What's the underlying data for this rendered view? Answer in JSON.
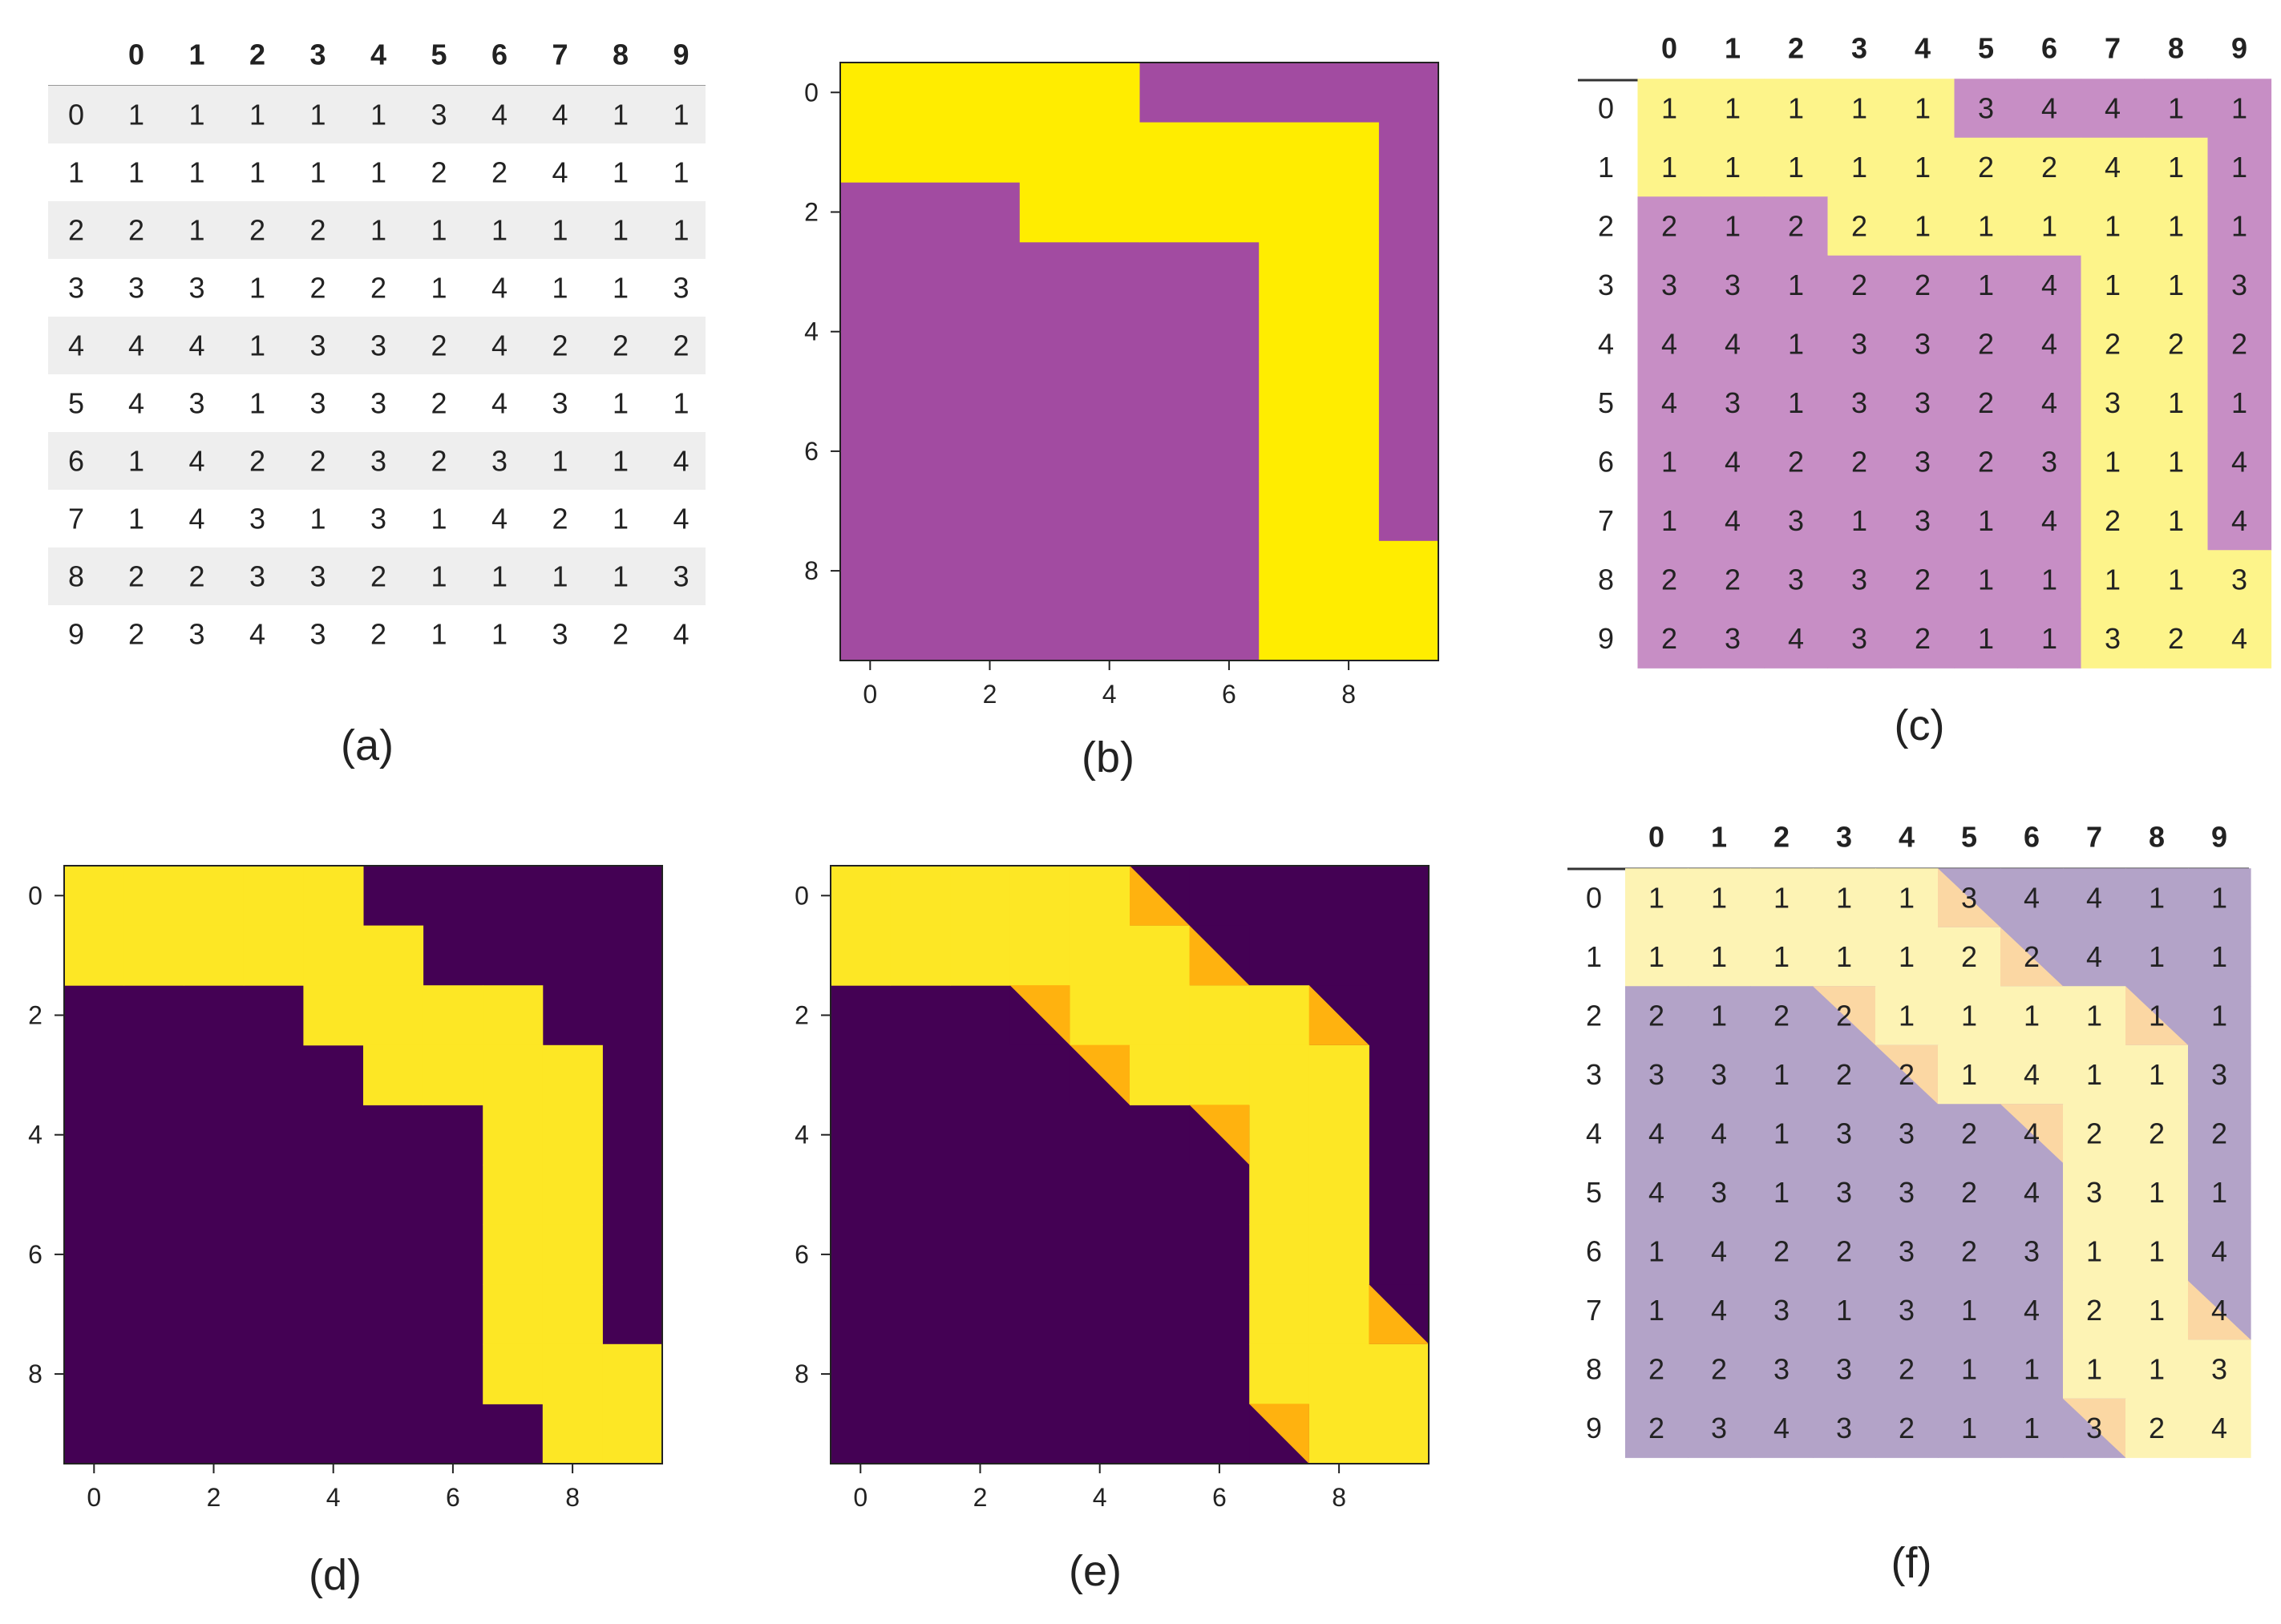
{
  "figure": {
    "captions": [
      "(a)",
      "(b)",
      "(c)",
      "(d)",
      "(e)",
      "(f)"
    ]
  },
  "colors": {
    "magenta": "#a24ba1",
    "yellow_bright": "#ffed00",
    "dark_purple": "#440154",
    "yellow_viridis": "#fde725",
    "orange": "#ffb20f",
    "overlay_purple": "#c78ec5",
    "overlay_yellow": "#fdf48a",
    "f_purple": "#b3a3c8",
    "f_yellow": "#fdf3b4",
    "f_orange": "#fbd7a3",
    "stripe": "#eeeeee",
    "text": "#222222"
  },
  "chart_data": [
    {
      "panel": "a",
      "type": "table",
      "columns": [
        "0",
        "1",
        "2",
        "3",
        "4",
        "5",
        "6",
        "7",
        "8",
        "9"
      ],
      "row_labels": [
        "0",
        "1",
        "2",
        "3",
        "4",
        "5",
        "6",
        "7",
        "8",
        "9"
      ],
      "rows": [
        [
          1,
          1,
          1,
          1,
          1,
          3,
          4,
          4,
          1,
          1
        ],
        [
          1,
          1,
          1,
          1,
          1,
          2,
          2,
          4,
          1,
          1
        ],
        [
          2,
          1,
          2,
          2,
          1,
          1,
          1,
          1,
          1,
          1
        ],
        [
          3,
          3,
          1,
          2,
          2,
          1,
          4,
          1,
          1,
          3
        ],
        [
          4,
          4,
          1,
          3,
          3,
          2,
          4,
          2,
          2,
          2
        ],
        [
          4,
          3,
          1,
          3,
          3,
          2,
          4,
          3,
          1,
          1
        ],
        [
          1,
          4,
          2,
          2,
          3,
          2,
          3,
          1,
          1,
          4
        ],
        [
          1,
          4,
          3,
          1,
          3,
          1,
          4,
          2,
          1,
          4
        ],
        [
          2,
          2,
          3,
          3,
          2,
          1,
          1,
          1,
          1,
          3
        ],
        [
          2,
          3,
          4,
          3,
          2,
          1,
          1,
          3,
          2,
          4
        ]
      ]
    },
    {
      "panel": "b",
      "type": "heatmap",
      "description_values": "binary mask, 1 = path (yellow), 0 = background (magenta)",
      "x_ticks": [
        "0",
        "2",
        "4",
        "6",
        "8"
      ],
      "y_ticks": [
        "0",
        "2",
        "4",
        "6",
        "8"
      ],
      "mask": [
        [
          1,
          1,
          1,
          1,
          1,
          0,
          0,
          0,
          0,
          0
        ],
        [
          1,
          1,
          1,
          1,
          1,
          1,
          1,
          1,
          1,
          0
        ],
        [
          0,
          0,
          0,
          1,
          1,
          1,
          1,
          1,
          1,
          0
        ],
        [
          0,
          0,
          0,
          0,
          0,
          0,
          0,
          1,
          1,
          0
        ],
        [
          0,
          0,
          0,
          0,
          0,
          0,
          0,
          1,
          1,
          0
        ],
        [
          0,
          0,
          0,
          0,
          0,
          0,
          0,
          1,
          1,
          0
        ],
        [
          0,
          0,
          0,
          0,
          0,
          0,
          0,
          1,
          1,
          0
        ],
        [
          0,
          0,
          0,
          0,
          0,
          0,
          0,
          1,
          1,
          0
        ],
        [
          0,
          0,
          0,
          0,
          0,
          0,
          0,
          1,
          1,
          1
        ],
        [
          0,
          0,
          0,
          0,
          0,
          0,
          0,
          1,
          1,
          1
        ]
      ]
    },
    {
      "panel": "c",
      "type": "table",
      "description": "grid of panel (a) overlaid with the mask of panel (b)",
      "columns": [
        "0",
        "1",
        "2",
        "3",
        "4",
        "5",
        "6",
        "7",
        "8",
        "9"
      ],
      "row_labels": [
        "0",
        "1",
        "2",
        "3",
        "4",
        "5",
        "6",
        "7",
        "8",
        "9"
      ],
      "rows_source": "panel a",
      "mask_source": "panel b"
    },
    {
      "panel": "d",
      "type": "heatmap",
      "description_values": "binary mask, 1 = path (yellow), 0 = background (dark purple)",
      "x_ticks": [
        "0",
        "2",
        "4",
        "6",
        "8"
      ],
      "y_ticks": [
        "0",
        "2",
        "4",
        "6",
        "8"
      ],
      "mask": [
        [
          1,
          1,
          1,
          1,
          1,
          0,
          0,
          0,
          0,
          0
        ],
        [
          1,
          1,
          1,
          1,
          1,
          1,
          0,
          0,
          0,
          0
        ],
        [
          0,
          0,
          0,
          0,
          1,
          1,
          1,
          1,
          0,
          0
        ],
        [
          0,
          0,
          0,
          0,
          0,
          1,
          1,
          1,
          1,
          0
        ],
        [
          0,
          0,
          0,
          0,
          0,
          0,
          0,
          1,
          1,
          0
        ],
        [
          0,
          0,
          0,
          0,
          0,
          0,
          0,
          1,
          1,
          0
        ],
        [
          0,
          0,
          0,
          0,
          0,
          0,
          0,
          1,
          1,
          0
        ],
        [
          0,
          0,
          0,
          0,
          0,
          0,
          0,
          1,
          1,
          0
        ],
        [
          0,
          0,
          0,
          0,
          0,
          0,
          0,
          1,
          1,
          1
        ],
        [
          0,
          0,
          0,
          0,
          0,
          0,
          0,
          0,
          1,
          1
        ]
      ]
    },
    {
      "panel": "e",
      "type": "heatmap",
      "description_values": "mask of panel (d) with diagonal half-cells (orange) at steps",
      "x_ticks": [
        "0",
        "2",
        "4",
        "6",
        "8"
      ],
      "y_ticks": [
        "0",
        "2",
        "4",
        "6",
        "8"
      ],
      "mask_source": "panel d",
      "diagonal_cells": [
        [
          0,
          5,
          "lower-left"
        ],
        [
          1,
          6,
          "lower-left"
        ],
        [
          2,
          8,
          "lower-left"
        ],
        [
          7,
          9,
          "lower-left"
        ],
        [
          2,
          3,
          "upper-right"
        ],
        [
          3,
          4,
          "upper-right"
        ],
        [
          4,
          6,
          "upper-right"
        ],
        [
          9,
          7,
          "upper-right"
        ]
      ]
    },
    {
      "panel": "f",
      "type": "table",
      "description": "grid of panel (a) overlaid with the diagonal path of panel (e)",
      "columns": [
        "0",
        "1",
        "2",
        "3",
        "4",
        "5",
        "6",
        "7",
        "8",
        "9"
      ],
      "row_labels": [
        "0",
        "1",
        "2",
        "3",
        "4",
        "5",
        "6",
        "7",
        "8",
        "9"
      ],
      "rows_source": "panel a",
      "mask_source": "panel e"
    }
  ]
}
